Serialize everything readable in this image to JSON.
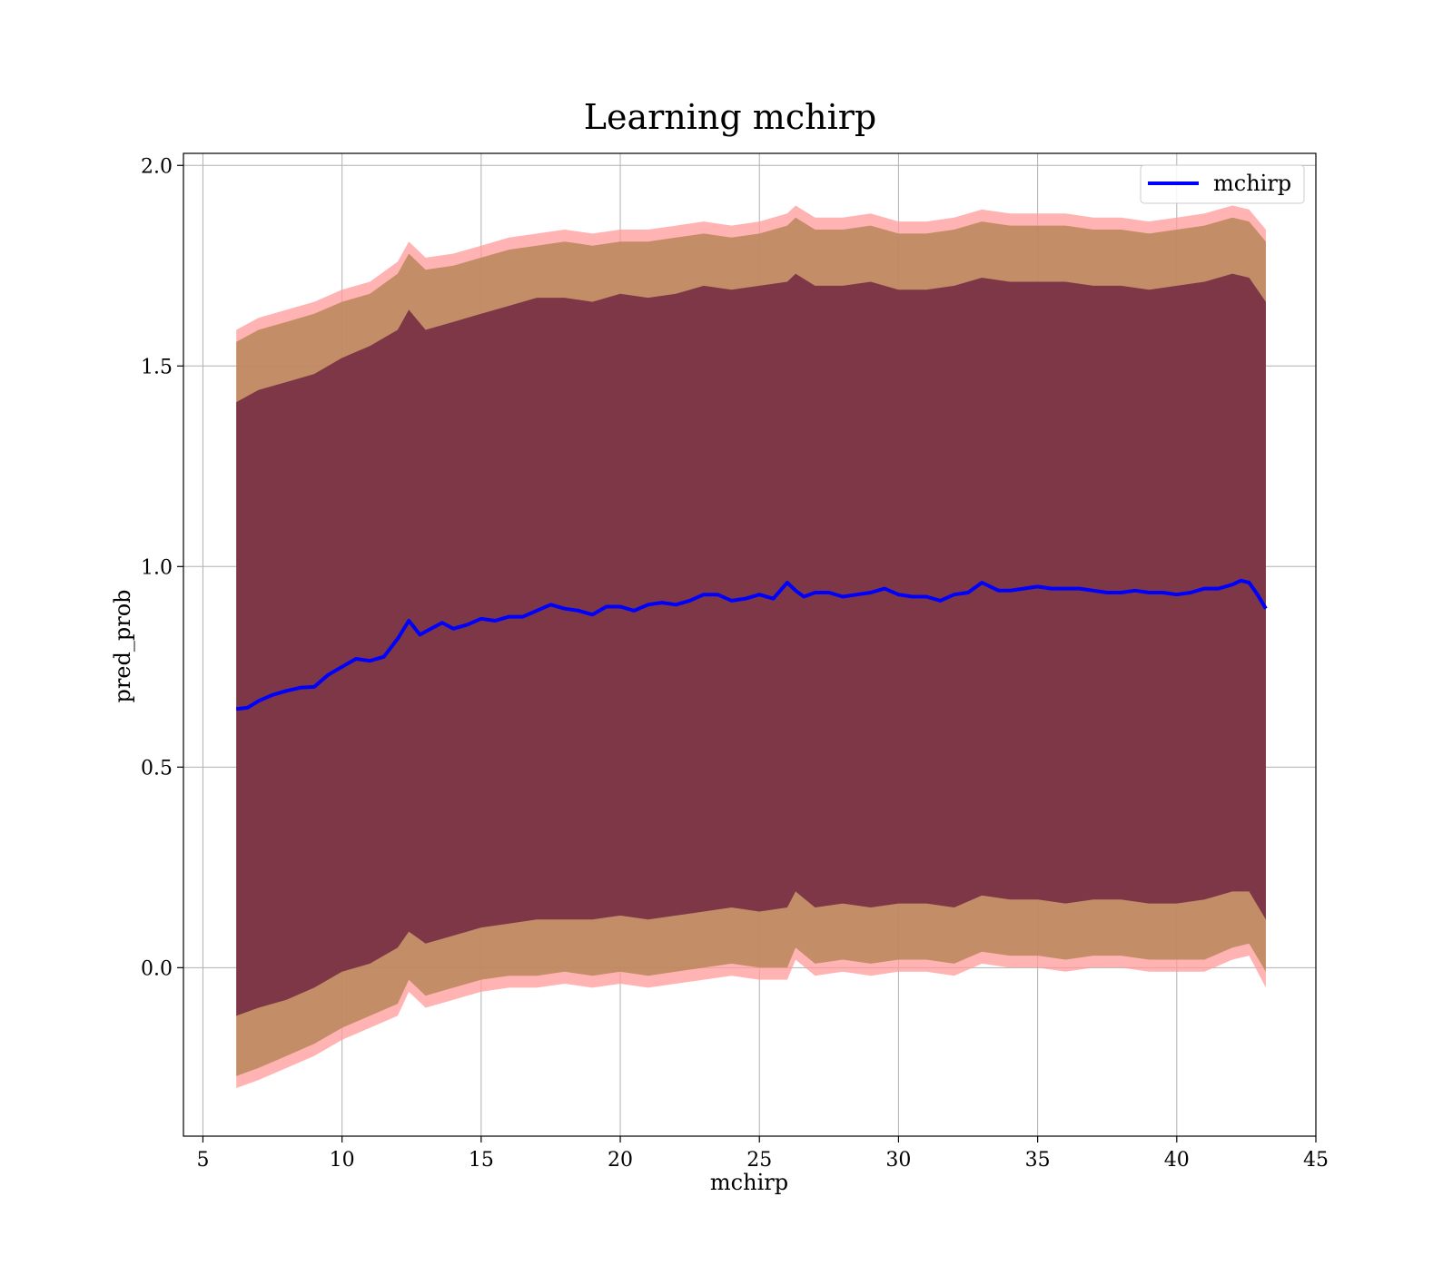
{
  "chart_data": {
    "type": "line",
    "title": "Learning mchirp",
    "xlabel": "mchirp",
    "ylabel": "pred_prob",
    "xlim": [
      4.3,
      45
    ],
    "ylim": [
      -0.42,
      2.03
    ],
    "xticks": [
      5,
      10,
      15,
      20,
      25,
      30,
      35,
      40,
      45
    ],
    "yticks": [
      0.0,
      0.5,
      1.0,
      1.5,
      2.0
    ],
    "xtick_labels": [
      "5",
      "10",
      "15",
      "20",
      "25",
      "30",
      "35",
      "40",
      "45"
    ],
    "ytick_labels": [
      "0.0",
      "0.5",
      "1.0",
      "1.5",
      "2.0"
    ],
    "grid": true,
    "legend_position": "top-right",
    "colors": {
      "line": "#0000ff",
      "outer_band": "#ff9999",
      "middle_band": "#b8865a",
      "inner_band": "#7a3346",
      "grid": "#b0b0b0"
    },
    "series": [
      {
        "name": "mchirp",
        "x": [
          6.2,
          6.6,
          7.0,
          7.5,
          8.0,
          8.5,
          9.0,
          9.5,
          10.0,
          10.5,
          11.0,
          11.5,
          12.0,
          12.4,
          12.8,
          13.2,
          13.6,
          14.0,
          14.5,
          15.0,
          15.5,
          16.0,
          16.5,
          17.0,
          17.5,
          18.0,
          18.5,
          19.0,
          19.5,
          20.0,
          20.5,
          21.0,
          21.5,
          22.0,
          22.5,
          23.0,
          23.5,
          24.0,
          24.5,
          25.0,
          25.5,
          26.0,
          26.3,
          26.6,
          27.0,
          27.5,
          28.0,
          28.5,
          29.0,
          29.5,
          30.0,
          30.5,
          31.0,
          31.5,
          32.0,
          32.5,
          33.0,
          33.3,
          33.6,
          34.0,
          34.5,
          35.0,
          35.5,
          36.0,
          36.5,
          37.0,
          37.5,
          38.0,
          38.5,
          39.0,
          39.5,
          40.0,
          40.5,
          41.0,
          41.5,
          42.0,
          42.3,
          42.6,
          42.9,
          43.2
        ],
        "values": [
          0.645,
          0.648,
          0.665,
          0.68,
          0.69,
          0.698,
          0.7,
          0.73,
          0.75,
          0.77,
          0.765,
          0.775,
          0.82,
          0.865,
          0.83,
          0.845,
          0.86,
          0.845,
          0.855,
          0.87,
          0.865,
          0.875,
          0.875,
          0.89,
          0.905,
          0.895,
          0.89,
          0.88,
          0.9,
          0.9,
          0.89,
          0.905,
          0.91,
          0.905,
          0.915,
          0.93,
          0.93,
          0.915,
          0.92,
          0.93,
          0.92,
          0.96,
          0.94,
          0.925,
          0.935,
          0.935,
          0.925,
          0.93,
          0.935,
          0.945,
          0.93,
          0.925,
          0.925,
          0.915,
          0.93,
          0.935,
          0.96,
          0.95,
          0.94,
          0.94,
          0.945,
          0.95,
          0.945,
          0.945,
          0.945,
          0.94,
          0.935,
          0.935,
          0.94,
          0.935,
          0.935,
          0.93,
          0.935,
          0.945,
          0.945,
          0.955,
          0.965,
          0.96,
          0.93,
          0.895
        ]
      }
    ],
    "bands": [
      {
        "level": "outer",
        "x": [
          6.2,
          7.0,
          8.0,
          9.0,
          10.0,
          11.0,
          12.0,
          12.4,
          13.0,
          14.0,
          15.0,
          16.0,
          17.0,
          18.0,
          19.0,
          20.0,
          21.0,
          22.0,
          23.0,
          24.0,
          25.0,
          26.0,
          26.3,
          27.0,
          28.0,
          29.0,
          30.0,
          31.0,
          32.0,
          33.0,
          34.0,
          35.0,
          36.0,
          37.0,
          38.0,
          39.0,
          40.0,
          41.0,
          42.0,
          42.6,
          43.2
        ],
        "upper": [
          1.59,
          1.62,
          1.64,
          1.66,
          1.69,
          1.71,
          1.76,
          1.81,
          1.77,
          1.78,
          1.8,
          1.82,
          1.83,
          1.84,
          1.83,
          1.84,
          1.84,
          1.85,
          1.86,
          1.85,
          1.86,
          1.88,
          1.9,
          1.87,
          1.87,
          1.88,
          1.86,
          1.86,
          1.87,
          1.89,
          1.88,
          1.88,
          1.88,
          1.87,
          1.87,
          1.86,
          1.87,
          1.88,
          1.9,
          1.89,
          1.84
        ],
        "lower": [
          -0.3,
          -0.28,
          -0.25,
          -0.22,
          -0.18,
          -0.15,
          -0.12,
          -0.06,
          -0.1,
          -0.08,
          -0.06,
          -0.05,
          -0.05,
          -0.04,
          -0.05,
          -0.04,
          -0.05,
          -0.04,
          -0.03,
          -0.02,
          -0.03,
          -0.03,
          0.02,
          -0.02,
          -0.01,
          -0.02,
          -0.01,
          -0.01,
          -0.02,
          0.01,
          0.0,
          0.0,
          -0.01,
          0.0,
          0.0,
          -0.01,
          -0.01,
          -0.01,
          0.02,
          0.03,
          -0.05
        ]
      },
      {
        "level": "middle",
        "x": [
          6.2,
          7.0,
          8.0,
          9.0,
          10.0,
          11.0,
          12.0,
          12.4,
          13.0,
          14.0,
          15.0,
          16.0,
          17.0,
          18.0,
          19.0,
          20.0,
          21.0,
          22.0,
          23.0,
          24.0,
          25.0,
          26.0,
          26.3,
          27.0,
          28.0,
          29.0,
          30.0,
          31.0,
          32.0,
          33.0,
          34.0,
          35.0,
          36.0,
          37.0,
          38.0,
          39.0,
          40.0,
          41.0,
          42.0,
          42.6,
          43.2
        ],
        "upper": [
          1.56,
          1.59,
          1.61,
          1.63,
          1.66,
          1.68,
          1.73,
          1.78,
          1.74,
          1.75,
          1.77,
          1.79,
          1.8,
          1.81,
          1.8,
          1.81,
          1.81,
          1.82,
          1.83,
          1.82,
          1.83,
          1.85,
          1.87,
          1.84,
          1.84,
          1.85,
          1.83,
          1.83,
          1.84,
          1.86,
          1.85,
          1.85,
          1.85,
          1.84,
          1.84,
          1.83,
          1.84,
          1.85,
          1.87,
          1.86,
          1.81
        ],
        "lower": [
          -0.27,
          -0.25,
          -0.22,
          -0.19,
          -0.15,
          -0.12,
          -0.09,
          -0.03,
          -0.07,
          -0.05,
          -0.03,
          -0.02,
          -0.02,
          -0.01,
          -0.02,
          -0.01,
          -0.02,
          -0.01,
          0.0,
          0.01,
          0.0,
          0.0,
          0.05,
          0.01,
          0.02,
          0.01,
          0.02,
          0.02,
          0.01,
          0.04,
          0.03,
          0.03,
          0.02,
          0.03,
          0.03,
          0.02,
          0.02,
          0.02,
          0.05,
          0.06,
          -0.01
        ]
      },
      {
        "level": "inner",
        "x": [
          6.2,
          7.0,
          8.0,
          9.0,
          10.0,
          11.0,
          12.0,
          12.4,
          13.0,
          14.0,
          15.0,
          16.0,
          17.0,
          18.0,
          19.0,
          20.0,
          21.0,
          22.0,
          23.0,
          24.0,
          25.0,
          26.0,
          26.3,
          27.0,
          28.0,
          29.0,
          30.0,
          31.0,
          32.0,
          33.0,
          34.0,
          35.0,
          36.0,
          37.0,
          38.0,
          39.0,
          40.0,
          41.0,
          42.0,
          42.6,
          43.2
        ],
        "upper": [
          1.41,
          1.44,
          1.46,
          1.48,
          1.52,
          1.55,
          1.59,
          1.64,
          1.59,
          1.61,
          1.63,
          1.65,
          1.67,
          1.67,
          1.66,
          1.68,
          1.67,
          1.68,
          1.7,
          1.69,
          1.7,
          1.71,
          1.73,
          1.7,
          1.7,
          1.71,
          1.69,
          1.69,
          1.7,
          1.72,
          1.71,
          1.71,
          1.71,
          1.7,
          1.7,
          1.69,
          1.7,
          1.71,
          1.73,
          1.72,
          1.66
        ],
        "lower": [
          -0.12,
          -0.1,
          -0.08,
          -0.05,
          -0.01,
          0.01,
          0.05,
          0.09,
          0.06,
          0.08,
          0.1,
          0.11,
          0.12,
          0.12,
          0.12,
          0.13,
          0.12,
          0.13,
          0.14,
          0.15,
          0.14,
          0.15,
          0.19,
          0.15,
          0.16,
          0.15,
          0.16,
          0.16,
          0.15,
          0.18,
          0.17,
          0.17,
          0.16,
          0.17,
          0.17,
          0.16,
          0.16,
          0.17,
          0.19,
          0.19,
          0.12
        ]
      }
    ]
  }
}
